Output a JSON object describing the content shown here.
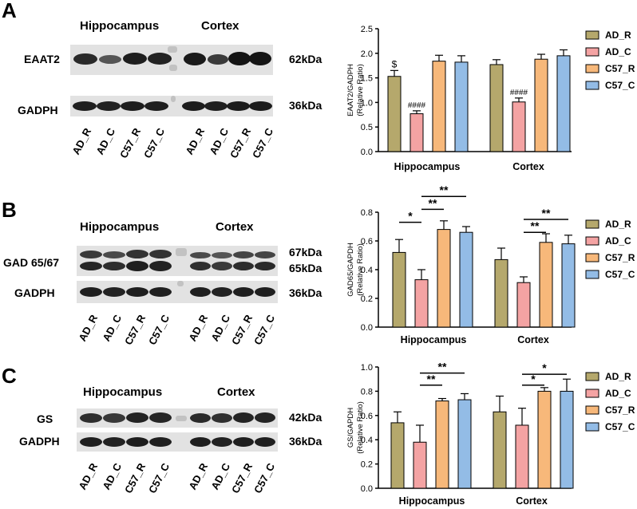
{
  "panels": [
    {
      "letter": "A",
      "blot": {
        "regions": [
          "Hippocampus",
          "Cortex"
        ],
        "proteins": [
          {
            "name": "EAAT2",
            "kda": "62kDa"
          },
          {
            "name": "GADPH",
            "kda": "36kDa"
          }
        ],
        "lanes": [
          "AD_R",
          "AD_C",
          "C57_R",
          "C57_C",
          "AD_R",
          "AD_C",
          "C57_R",
          "C57_C"
        ]
      }
    },
    {
      "letter": "B",
      "blot": {
        "regions": [
          "Hippocampus",
          "Cortex"
        ],
        "proteins": [
          {
            "name": "GAD 65/67",
            "kda": "67kDa",
            "kda2": "65kDa"
          },
          {
            "name": "GADPH",
            "kda": "36kDa"
          }
        ],
        "lanes": [
          "AD_R",
          "AD_C",
          "C57_R",
          "C57_C",
          "AD_R",
          "AD_C",
          "C57_R",
          "C57_C"
        ]
      }
    },
    {
      "letter": "C",
      "blot": {
        "regions": [
          "Hippocampus",
          "Cortex"
        ],
        "proteins": [
          {
            "name": "GS",
            "kda": "42kDa"
          },
          {
            "name": "GADPH",
            "kda": "36kDa"
          }
        ],
        "lanes": [
          "AD_R",
          "AD_C",
          "C57_R",
          "C57_C",
          "AD_R",
          "AD_C",
          "C57_R",
          "C57_C"
        ]
      }
    }
  ],
  "colors": {
    "AD_R": "#b5a86c",
    "AD_C": "#f4a3a3",
    "C57_R": "#f7b87a",
    "C57_C": "#93bce6"
  },
  "chart_data": [
    {
      "type": "bar",
      "ylabel": "EAAT2/GADPH\n(Relative Ratio)",
      "ylabel_lines": [
        "EAAT2/GADPH",
        "(Relative Ratio)"
      ],
      "categories": [
        "Hippocampus",
        "Cortex"
      ],
      "ylim": [
        0,
        2.5
      ],
      "yticks": [
        "0.0",
        "0.5",
        "1.0",
        "1.5",
        "2.0",
        "2.5"
      ],
      "series": [
        {
          "name": "AD_R",
          "values": [
            1.53,
            1.77
          ],
          "errors": [
            0.12,
            0.1
          ]
        },
        {
          "name": "AD_C",
          "values": [
            0.77,
            1.01
          ],
          "errors": [
            0.06,
            0.08
          ]
        },
        {
          "name": "C57_R",
          "values": [
            1.84,
            1.88
          ],
          "errors": [
            0.12,
            0.1
          ]
        },
        {
          "name": "C57_C",
          "values": [
            1.82,
            1.95
          ],
          "errors": [
            0.13,
            0.12
          ]
        }
      ],
      "annotations": [
        {
          "category": 0,
          "series": 0,
          "text": "$"
        },
        {
          "category": 0,
          "series": 1,
          "text": "####"
        },
        {
          "category": 1,
          "series": 1,
          "text": "####"
        }
      ],
      "significance": [],
      "legend": "right"
    },
    {
      "type": "bar",
      "ylabel_lines": [
        "GAD65/GAPDH",
        "(Relative Ratio)"
      ],
      "categories": [
        "Hippocampus",
        "Cortex"
      ],
      "ylim": [
        0,
        0.8
      ],
      "yticks": [
        "0.0",
        "0.2",
        "0.4",
        "0.6",
        "0.8"
      ],
      "series": [
        {
          "name": "AD_R",
          "values": [
            0.52,
            0.47
          ],
          "errors": [
            0.09,
            0.08
          ]
        },
        {
          "name": "AD_C",
          "values": [
            0.33,
            0.31
          ],
          "errors": [
            0.07,
            0.04
          ]
        },
        {
          "name": "C57_R",
          "values": [
            0.68,
            0.59
          ],
          "errors": [
            0.06,
            0.06
          ]
        },
        {
          "name": "C57_C",
          "values": [
            0.66,
            0.58
          ],
          "errors": [
            0.04,
            0.06
          ]
        }
      ],
      "significance": [
        {
          "category": 0,
          "from": 0,
          "to": 1,
          "y": 0.73,
          "text": "*"
        },
        {
          "category": 0,
          "from": 1,
          "to": 2,
          "y": 0.82,
          "text": "**"
        },
        {
          "category": 0,
          "from": 1,
          "to": 3,
          "y": 0.91,
          "text": "**"
        },
        {
          "category": 1,
          "from": 1,
          "to": 2,
          "y": 0.66,
          "text": "**"
        },
        {
          "category": 1,
          "from": 1,
          "to": 3,
          "y": 0.75,
          "text": "**"
        }
      ],
      "legend": "right"
    },
    {
      "type": "bar",
      "ylabel_lines": [
        "GS/GAPDH",
        "(Relative Ratio)"
      ],
      "categories": [
        "Hippocampus",
        "Cortex"
      ],
      "ylim": [
        0,
        1.0
      ],
      "yticks": [
        "0.0",
        "0.2",
        "0.4",
        "0.6",
        "0.8",
        "1.0"
      ],
      "series": [
        {
          "name": "AD_R",
          "values": [
            0.54,
            0.63
          ],
          "errors": [
            0.09,
            0.13
          ]
        },
        {
          "name": "AD_C",
          "values": [
            0.38,
            0.52
          ],
          "errors": [
            0.14,
            0.14
          ]
        },
        {
          "name": "C57_R",
          "values": [
            0.72,
            0.8
          ],
          "errors": [
            0.02,
            0.03
          ]
        },
        {
          "name": "C57_C",
          "values": [
            0.73,
            0.8
          ],
          "errors": [
            0.05,
            0.1
          ]
        }
      ],
      "significance": [
        {
          "category": 0,
          "from": 1,
          "to": 2,
          "y": 0.85,
          "text": "**"
        },
        {
          "category": 0,
          "from": 1,
          "to": 3,
          "y": 0.95,
          "text": "**"
        },
        {
          "category": 1,
          "from": 1,
          "to": 2,
          "y": 0.85,
          "text": "*"
        },
        {
          "category": 1,
          "from": 1,
          "to": 3,
          "y": 0.94,
          "text": "*"
        }
      ],
      "legend": "right"
    }
  ]
}
